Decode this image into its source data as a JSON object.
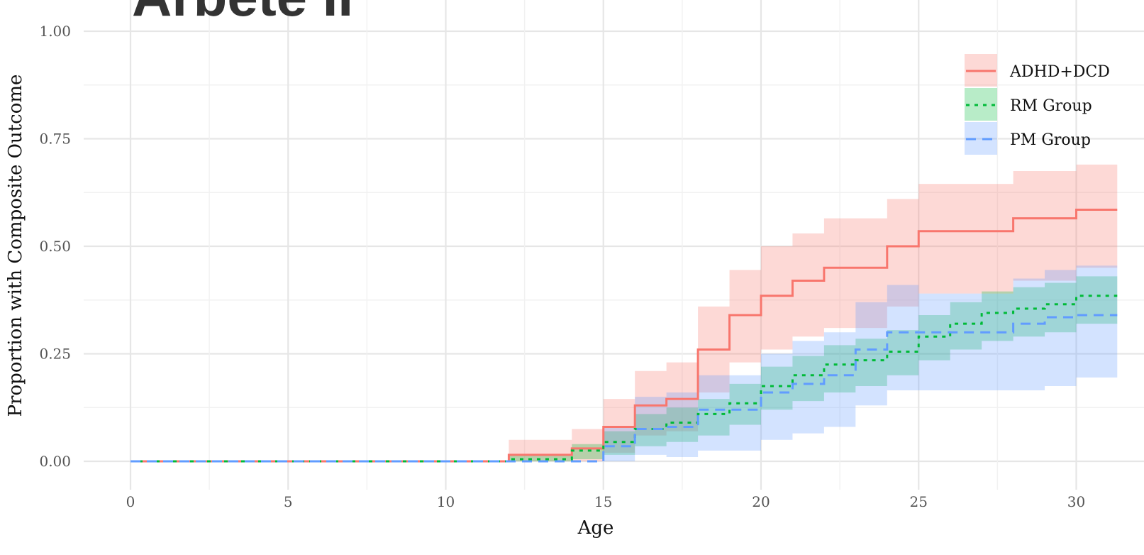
{
  "header": {
    "title_fragment": "Arbete II"
  },
  "chart_data": {
    "type": "line",
    "step": true,
    "title": "",
    "xlabel": "Age",
    "ylabel": "Proportion with Composite Outcome",
    "xlim": [
      0,
      31
    ],
    "ylim": [
      0,
      1
    ],
    "x_ticks": [
      0,
      5,
      10,
      15,
      20,
      25,
      30
    ],
    "x_tick_labels": [
      "0",
      "5",
      "10",
      "15",
      "20",
      "25",
      "30"
    ],
    "y_ticks": [
      0,
      0.25,
      0.5,
      0.75,
      1.0
    ],
    "y_tick_labels": [
      "0.00",
      "0.25",
      "0.50",
      "0.75",
      "1.00"
    ],
    "grid": true,
    "legend_position": "top-right",
    "series": [
      {
        "name": "ADHD+DCD",
        "color": "#F8766D",
        "linestyle": "solid",
        "x": [
          0,
          12,
          14,
          15,
          16,
          17,
          18,
          19,
          20,
          21,
          22,
          24,
          25,
          28,
          30
        ],
        "y": [
          0,
          0.015,
          0.03,
          0.08,
          0.13,
          0.145,
          0.26,
          0.34,
          0.385,
          0.42,
          0.45,
          0.5,
          0.535,
          0.565,
          0.585
        ],
        "lower": [
          0,
          0,
          0,
          0.02,
          0.06,
          0.07,
          0.16,
          0.23,
          0.26,
          0.29,
          0.31,
          0.36,
          0.39,
          0.42,
          0.45
        ],
        "upper": [
          0,
          0.05,
          0.075,
          0.145,
          0.21,
          0.23,
          0.36,
          0.445,
          0.5,
          0.53,
          0.565,
          0.61,
          0.645,
          0.675,
          0.69
        ]
      },
      {
        "name": "RM Group",
        "color": "#00BA38",
        "linestyle": "dotted",
        "x": [
          0,
          12,
          14,
          15,
          16,
          17,
          18,
          19,
          20,
          21,
          22,
          23,
          24,
          25,
          26,
          27,
          28,
          29,
          30
        ],
        "y": [
          0,
          0.005,
          0.025,
          0.045,
          0.075,
          0.09,
          0.11,
          0.135,
          0.175,
          0.2,
          0.225,
          0.235,
          0.255,
          0.29,
          0.32,
          0.345,
          0.355,
          0.365,
          0.385
        ],
        "lower": [
          0,
          0,
          0.005,
          0.015,
          0.035,
          0.045,
          0.06,
          0.085,
          0.12,
          0.14,
          0.16,
          0.175,
          0.2,
          0.235,
          0.26,
          0.28,
          0.29,
          0.3,
          0.32
        ],
        "upper": [
          0,
          0.015,
          0.04,
          0.07,
          0.11,
          0.125,
          0.145,
          0.18,
          0.22,
          0.245,
          0.27,
          0.285,
          0.305,
          0.34,
          0.37,
          0.395,
          0.405,
          0.415,
          0.43
        ]
      },
      {
        "name": "PM Group",
        "color": "#619CFF",
        "linestyle": "dashed",
        "x": [
          0,
          15,
          16,
          17,
          18,
          20,
          21,
          22,
          23,
          24,
          25,
          28,
          29,
          30
        ],
        "y": [
          0,
          0.035,
          0.075,
          0.08,
          0.12,
          0.16,
          0.18,
          0.2,
          0.26,
          0.3,
          0.3,
          0.32,
          0.335,
          0.34
        ],
        "lower": [
          0,
          0,
          0.015,
          0.01,
          0.025,
          0.05,
          0.065,
          0.08,
          0.13,
          0.165,
          0.165,
          0.165,
          0.175,
          0.195
        ],
        "upper": [
          0,
          0.08,
          0.15,
          0.16,
          0.2,
          0.25,
          0.28,
          0.3,
          0.37,
          0.41,
          0.39,
          0.425,
          0.445,
          0.455
        ]
      }
    ]
  }
}
